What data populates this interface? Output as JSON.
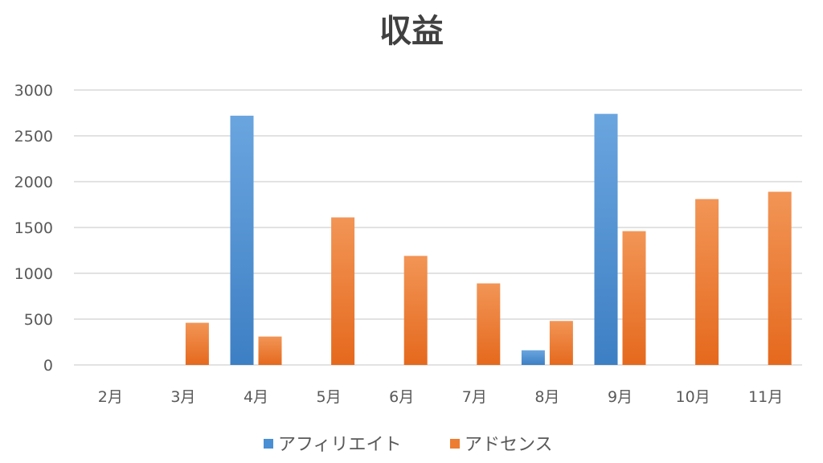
{
  "chart_data": {
    "type": "bar",
    "title": "収益",
    "xlabel": "",
    "ylabel": "",
    "categories": [
      "2月",
      "3月",
      "4月",
      "5月",
      "6月",
      "7月",
      "8月",
      "9月",
      "10月",
      "11月"
    ],
    "ylim": [
      0,
      3000
    ],
    "yticks": [
      0,
      500,
      1000,
      1500,
      2000,
      2500,
      3000
    ],
    "grid": true,
    "legend_position": "bottom",
    "series": [
      {
        "name": "アフィリエイト",
        "color": "#4a8fd4",
        "values": [
          0,
          0,
          2720,
          0,
          0,
          0,
          160,
          2740,
          0,
          0
        ]
      },
      {
        "name": "アドセンス",
        "color": "#ed7d31",
        "values": [
          0,
          460,
          310,
          1610,
          1190,
          890,
          480,
          1460,
          1810,
          1890
        ]
      }
    ]
  }
}
